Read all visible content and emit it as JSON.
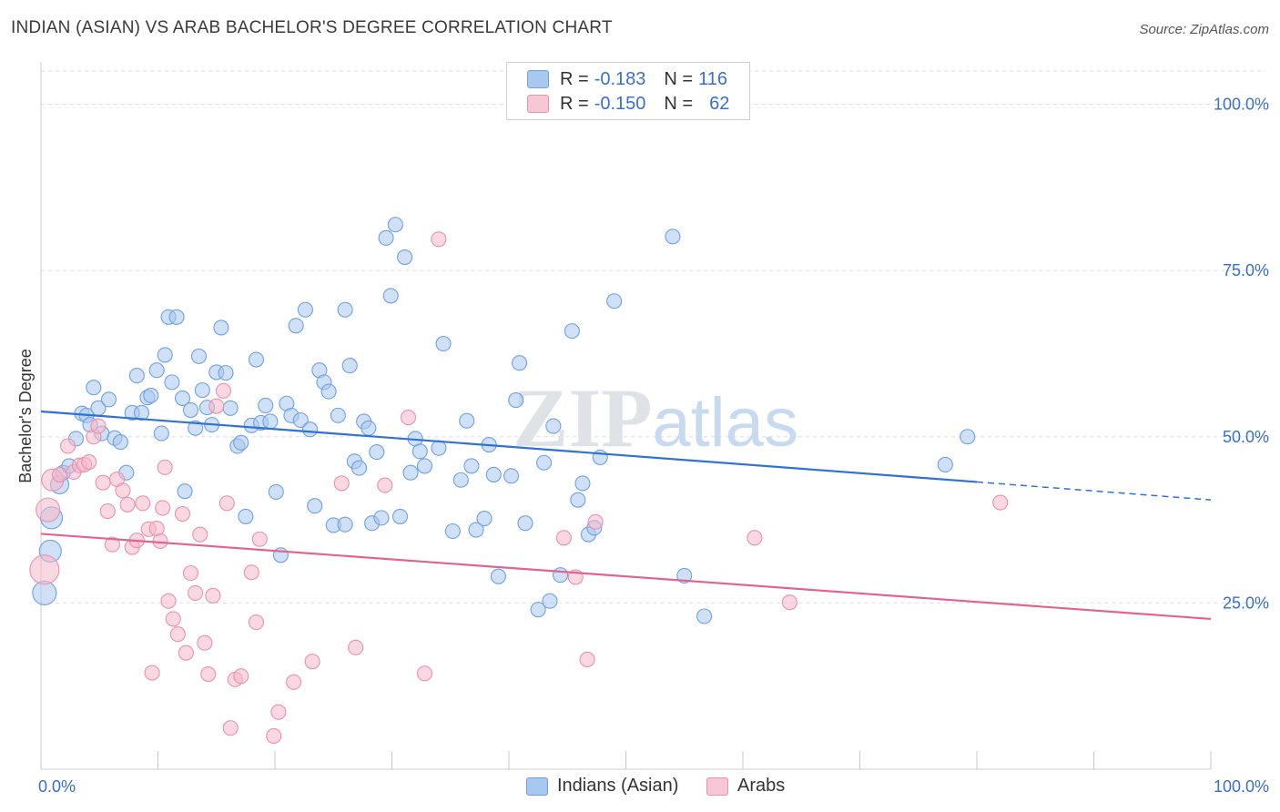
{
  "title": "INDIAN (ASIAN) VS ARAB BACHELOR'S DEGREE CORRELATION CHART",
  "source": "Source: ZipAtlas.com",
  "watermark": "ZIPatlas",
  "legend": {
    "rows": [
      {
        "r_label": "R =",
        "r_value": "-0.183",
        "n_label": "N =",
        "n_value": "116",
        "color": "#a9c8f0"
      },
      {
        "r_label": "R =",
        "r_value": "-0.150",
        "n_label": "N =",
        "n_value": "62",
        "color": "#f6b8cb"
      }
    ]
  },
  "bottom_legend": [
    {
      "label": "Indians (Asian)",
      "color": "#a9c8f0"
    },
    {
      "label": "Arabs",
      "color": "#f6b8cb"
    }
  ],
  "chart_data": {
    "type": "scatter",
    "title": "INDIAN (ASIAN) VS ARAB BACHELOR'S DEGREE CORRELATION CHART",
    "xlabel": "",
    "ylabel": "Bachelor's Degree",
    "xlim": [
      0,
      100
    ],
    "ylim": [
      0,
      105
    ],
    "x_tick_labels": [
      "0.0%",
      "100.0%"
    ],
    "y_ticks": [
      25,
      50,
      75,
      100
    ],
    "y_tick_labels": [
      "25.0%",
      "50.0%",
      "75.0%",
      "100.0%"
    ],
    "grid": true,
    "legend_position": "top-center",
    "series": [
      {
        "name": "Indians (Asian)",
        "color": "#6fa0e0",
        "fill": "#a9c8f0",
        "trend": {
          "x0": 0,
          "y0": 53.8,
          "x1": 80,
          "y1": 43.2,
          "dash_to_x": 100,
          "dash_to_y": 40.5
        },
        "points": [
          [
            0.3,
            26.5
          ],
          [
            0.8,
            32.8
          ],
          [
            0.9,
            37.8
          ],
          [
            1.6,
            42.8
          ],
          [
            1.9,
            44.6
          ],
          [
            2.4,
            45.6
          ],
          [
            3.0,
            49.7
          ],
          [
            3.5,
            53.5
          ],
          [
            3.9,
            53.2
          ],
          [
            4.2,
            51.8
          ],
          [
            4.5,
            57.4
          ],
          [
            4.9,
            54.3
          ],
          [
            5.2,
            50.5
          ],
          [
            5.8,
            55.6
          ],
          [
            6.3,
            49.8
          ],
          [
            6.8,
            49.2
          ],
          [
            7.3,
            44.6
          ],
          [
            7.8,
            53.6
          ],
          [
            8.2,
            59.2
          ],
          [
            8.6,
            53.6
          ],
          [
            9.1,
            55.9
          ],
          [
            9.4,
            56.2
          ],
          [
            9.9,
            60.0
          ],
          [
            10.3,
            50.5
          ],
          [
            10.6,
            62.3
          ],
          [
            10.9,
            68.0
          ],
          [
            11.2,
            58.2
          ],
          [
            11.6,
            68.0
          ],
          [
            12.1,
            55.8
          ],
          [
            12.3,
            41.8
          ],
          [
            12.8,
            54.0
          ],
          [
            13.2,
            51.3
          ],
          [
            13.5,
            62.1
          ],
          [
            13.8,
            57.0
          ],
          [
            14.2,
            54.4
          ],
          [
            14.6,
            51.8
          ],
          [
            15.0,
            59.7
          ],
          [
            15.4,
            66.4
          ],
          [
            15.8,
            59.6
          ],
          [
            16.2,
            54.3
          ],
          [
            16.8,
            48.6
          ],
          [
            17.1,
            49.1
          ],
          [
            17.5,
            38.0
          ],
          [
            18.0,
            51.7
          ],
          [
            18.4,
            61.6
          ],
          [
            18.8,
            52.1
          ],
          [
            19.2,
            54.7
          ],
          [
            19.6,
            52.3
          ],
          [
            20.1,
            41.7
          ],
          [
            20.5,
            32.2
          ],
          [
            21.0,
            55.0
          ],
          [
            21.4,
            53.2
          ],
          [
            21.8,
            66.7
          ],
          [
            22.2,
            52.5
          ],
          [
            22.6,
            69.1
          ],
          [
            23.0,
            51.1
          ],
          [
            23.4,
            39.6
          ],
          [
            23.8,
            60.0
          ],
          [
            24.2,
            58.2
          ],
          [
            24.6,
            56.8
          ],
          [
            25.0,
            36.7
          ],
          [
            25.4,
            53.2
          ],
          [
            26.0,
            69.1
          ],
          [
            26.4,
            60.7
          ],
          [
            26.0,
            36.8
          ],
          [
            26.8,
            46.3
          ],
          [
            27.2,
            45.3
          ],
          [
            27.6,
            52.3
          ],
          [
            28.0,
            51.3
          ],
          [
            28.3,
            37.0
          ],
          [
            28.7,
            47.7
          ],
          [
            29.1,
            37.8
          ],
          [
            29.5,
            79.9
          ],
          [
            29.9,
            71.2
          ],
          [
            30.3,
            81.9
          ],
          [
            30.7,
            38.0
          ],
          [
            31.1,
            77.0
          ],
          [
            31.6,
            44.6
          ],
          [
            32.0,
            49.7
          ],
          [
            32.4,
            47.8
          ],
          [
            32.8,
            45.6
          ],
          [
            34.0,
            48.3
          ],
          [
            34.4,
            64.0
          ],
          [
            35.2,
            35.8
          ],
          [
            35.9,
            43.5
          ],
          [
            36.4,
            52.4
          ],
          [
            36.8,
            45.6
          ],
          [
            37.2,
            36.0
          ],
          [
            37.9,
            37.7
          ],
          [
            38.3,
            48.8
          ],
          [
            38.7,
            44.3
          ],
          [
            39.1,
            29.0
          ],
          [
            40.2,
            44.1
          ],
          [
            40.6,
            55.5
          ],
          [
            40.9,
            61.1
          ],
          [
            41.4,
            37.0
          ],
          [
            42.5,
            24.0
          ],
          [
            43.0,
            46.1
          ],
          [
            43.5,
            25.3
          ],
          [
            43.8,
            51.6
          ],
          [
            44.4,
            29.2
          ],
          [
            45.4,
            65.9
          ],
          [
            45.9,
            40.5
          ],
          [
            46.3,
            43.0
          ],
          [
            46.8,
            35.3
          ],
          [
            47.3,
            36.3
          ],
          [
            47.8,
            46.9
          ],
          [
            49.0,
            70.4
          ],
          [
            54.0,
            80.1
          ],
          [
            55.0,
            29.1
          ],
          [
            56.7,
            23.0
          ],
          [
            77.3,
            45.8
          ],
          [
            79.2,
            50.0
          ]
        ]
      },
      {
        "name": "Arabs",
        "color": "#e891ae",
        "fill": "#f6b8cb",
        "trend": {
          "x0": 0,
          "y0": 35.4,
          "x1": 100,
          "y1": 22.6
        },
        "points": [
          [
            0.3,
            30.0
          ],
          [
            0.6,
            39.0
          ],
          [
            1.0,
            43.5
          ],
          [
            1.6,
            44.3
          ],
          [
            2.3,
            48.6
          ],
          [
            2.8,
            44.7
          ],
          [
            3.3,
            45.7
          ],
          [
            3.7,
            45.8
          ],
          [
            4.1,
            46.2
          ],
          [
            4.5,
            50.0
          ],
          [
            4.9,
            51.6
          ],
          [
            5.3,
            43.1
          ],
          [
            5.7,
            38.8
          ],
          [
            6.1,
            33.8
          ],
          [
            6.5,
            43.6
          ],
          [
            7.0,
            41.9
          ],
          [
            7.4,
            39.8
          ],
          [
            7.8,
            33.4
          ],
          [
            8.2,
            34.4
          ],
          [
            8.7,
            40.0
          ],
          [
            9.2,
            36.1
          ],
          [
            9.5,
            14.5
          ],
          [
            9.9,
            36.2
          ],
          [
            10.2,
            34.3
          ],
          [
            10.4,
            39.3
          ],
          [
            10.6,
            45.4
          ],
          [
            10.9,
            25.3
          ],
          [
            11.3,
            22.6
          ],
          [
            11.7,
            20.3
          ],
          [
            12.1,
            38.4
          ],
          [
            12.4,
            17.5
          ],
          [
            12.8,
            29.5
          ],
          [
            13.2,
            26.5
          ],
          [
            13.6,
            35.3
          ],
          [
            14.0,
            19.0
          ],
          [
            14.3,
            14.3
          ],
          [
            14.7,
            26.1
          ],
          [
            15.0,
            54.6
          ],
          [
            15.6,
            56.9
          ],
          [
            15.9,
            40.0
          ],
          [
            16.2,
            6.2
          ],
          [
            16.6,
            13.5
          ],
          [
            17.1,
            14.0
          ],
          [
            18.0,
            29.6
          ],
          [
            18.4,
            22.1
          ],
          [
            18.7,
            34.6
          ],
          [
            19.9,
            5.0
          ],
          [
            20.3,
            8.6
          ],
          [
            21.6,
            13.1
          ],
          [
            23.2,
            16.2
          ],
          [
            25.7,
            43.0
          ],
          [
            26.9,
            18.3
          ],
          [
            29.4,
            42.7
          ],
          [
            31.4,
            52.9
          ],
          [
            32.8,
            14.4
          ],
          [
            34.0,
            79.7
          ],
          [
            44.7,
            34.8
          ],
          [
            45.7,
            28.9
          ],
          [
            46.7,
            16.5
          ],
          [
            47.4,
            37.2
          ],
          [
            61.0,
            34.8
          ],
          [
            64.0,
            25.1
          ],
          [
            82.0,
            40.1
          ]
        ]
      }
    ]
  }
}
